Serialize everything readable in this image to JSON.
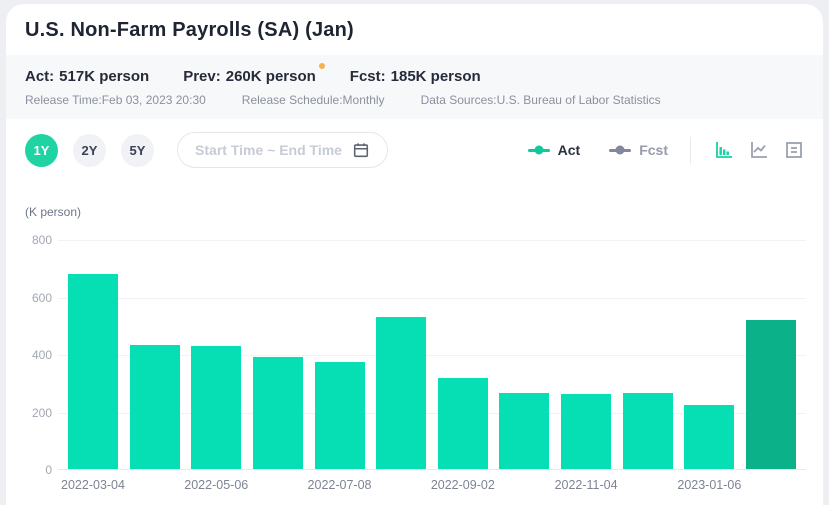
{
  "header": {
    "title": "U.S. Non-Farm Payrolls (SA) (Jan)"
  },
  "stats": {
    "act": {
      "label": "Act:",
      "value": "517K person"
    },
    "prev": {
      "label": "Prev:",
      "value": "260K person",
      "revision_dot_color": "#f0b254"
    },
    "fcst": {
      "label": "Fcst:",
      "value": "185K person"
    }
  },
  "meta": {
    "release_time": "Release Time:Feb 03, 2023 20:30",
    "release_schedule": "Release Schedule:Monthly",
    "data_sources": "Data Sources:U.S. Bureau of Labor Statistics"
  },
  "controls": {
    "ranges": [
      {
        "label": "1Y",
        "active": true
      },
      {
        "label": "2Y",
        "active": false
      },
      {
        "label": "5Y",
        "active": false
      }
    ],
    "date_picker_placeholder": "Start Time ~ End Time",
    "legend": [
      {
        "label": "Act",
        "color": "#12c79b"
      },
      {
        "label": "Fcst",
        "color": "#818899"
      }
    ],
    "view_modes": [
      "bar-chart",
      "line-chart",
      "data-list"
    ],
    "active_view": "bar-chart"
  },
  "colors": {
    "bar": "#06dfb3",
    "bar_highlight": "#0bb189",
    "active_pill": "#1fd3a2",
    "strip_bg": "#f7f8fa"
  },
  "chart_data": {
    "type": "bar",
    "title": "U.S. Non-Farm Payrolls (SA) (Jan)",
    "ylabel": "(K person)",
    "xlabel": "",
    "unit_label": "(K person)",
    "categories": [
      "2022-03-04",
      "",
      "2022-05-06",
      "",
      "2022-07-08",
      "",
      "2022-09-02",
      "",
      "2022-11-04",
      "",
      "2023-01-06",
      ""
    ],
    "values": [
      678,
      431,
      428,
      390,
      372,
      528,
      315,
      263,
      261,
      263,
      223,
      517
    ],
    "series_name": "Act",
    "highlight_index": 11,
    "ylim": [
      0,
      800
    ],
    "yticks": [
      0,
      200,
      400,
      600,
      800
    ],
    "grid": true,
    "legend_position": "top-right"
  }
}
